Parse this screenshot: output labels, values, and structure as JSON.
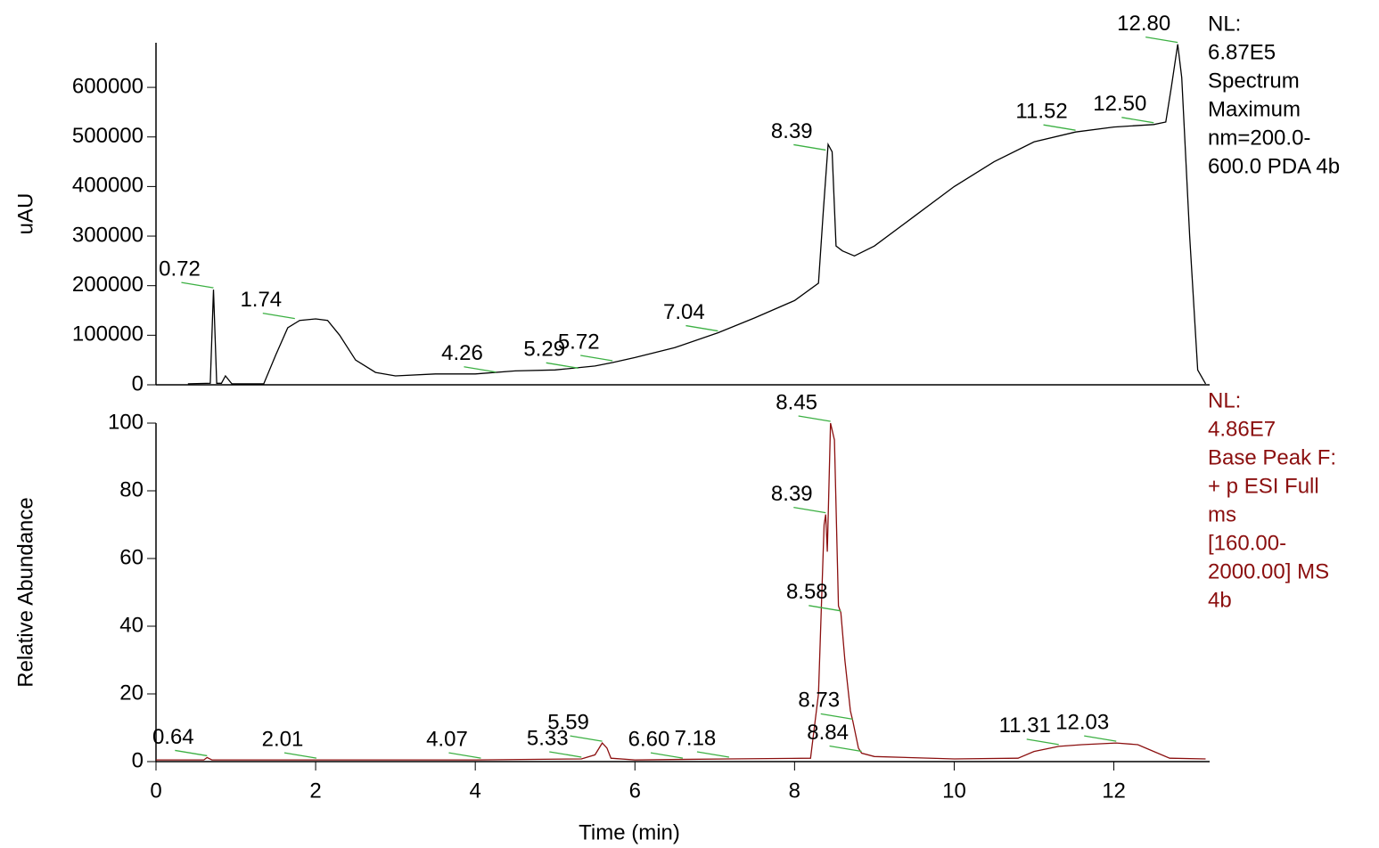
{
  "chart_data": [
    {
      "type": "line",
      "ylabel": "uAU",
      "xlim": [
        0,
        13.2
      ],
      "ylim": [
        0,
        690000
      ],
      "yticks": [
        0,
        100000,
        200000,
        300000,
        400000,
        500000,
        600000
      ],
      "x": [
        0.4,
        0.68,
        0.72,
        0.76,
        0.82,
        0.87,
        0.95,
        1.35,
        1.5,
        1.65,
        1.8,
        2.0,
        2.15,
        2.3,
        2.5,
        2.75,
        3.0,
        3.5,
        4.0,
        4.5,
        5.0,
        5.5,
        5.72,
        6.0,
        6.5,
        7.04,
        7.5,
        8.0,
        8.3,
        8.36,
        8.42,
        8.47,
        8.52,
        8.6,
        8.75,
        9.0,
        9.5,
        10.0,
        10.5,
        11.0,
        11.52,
        12.0,
        12.5,
        12.65,
        12.72,
        12.8,
        12.85,
        12.95,
        13.05,
        13.15
      ],
      "series": [
        {
          "name": "PDA",
          "color": "#000000",
          "values": [
            2000,
            3000,
            192000,
            3000,
            3000,
            18000,
            2000,
            2000,
            60000,
            115000,
            130000,
            133000,
            130000,
            100000,
            50000,
            25000,
            18000,
            22000,
            22000,
            28000,
            30000,
            38000,
            45000,
            55000,
            75000,
            105000,
            135000,
            170000,
            205000,
            350000,
            485000,
            470000,
            280000,
            270000,
            260000,
            280000,
            340000,
            400000,
            450000,
            490000,
            510000,
            520000,
            525000,
            530000,
            600000,
            687000,
            620000,
            300000,
            30000,
            2000
          ]
        }
      ],
      "peaks": [
        {
          "label": "0.72",
          "x": 0.72,
          "y": 192000
        },
        {
          "label": "1.74",
          "x": 1.74,
          "y": 130000
        },
        {
          "label": "4.26",
          "x": 4.26,
          "y": 22000
        },
        {
          "label": "5.29",
          "x": 5.29,
          "y": 30000
        },
        {
          "label": "5.72",
          "x": 5.72,
          "y": 45000
        },
        {
          "label": "7.04",
          "x": 7.04,
          "y": 105000
        },
        {
          "label": "8.39",
          "x": 8.39,
          "y": 470000
        },
        {
          "label": "11.52",
          "x": 11.52,
          "y": 510000
        },
        {
          "label": "12.50",
          "x": 12.5,
          "y": 525000
        },
        {
          "label": "12.80",
          "x": 12.8,
          "y": 687000
        }
      ],
      "info": [
        "NL:",
        "6.87E5",
        "Spectrum",
        "Maximum",
        "nm=200.0-",
        "600.0  PDA 4b"
      ]
    },
    {
      "type": "line",
      "ylabel": "Relative Abundance",
      "xlabel": "Time (min)",
      "xlim": [
        0,
        13.2
      ],
      "ylim": [
        0,
        100
      ],
      "xticks": [
        0,
        2,
        4,
        6,
        8,
        10,
        12
      ],
      "yticks": [
        0,
        20,
        40,
        60,
        80,
        100
      ],
      "x": [
        0,
        0.6,
        0.64,
        0.7,
        2,
        4,
        5.33,
        5.5,
        5.59,
        5.65,
        5.7,
        6,
        7.18,
        8.2,
        8.3,
        8.37,
        8.39,
        8.41,
        8.45,
        8.5,
        8.55,
        8.58,
        8.63,
        8.7,
        8.73,
        8.8,
        8.84,
        9,
        10,
        10.8,
        11.0,
        11.31,
        11.6,
        12.03,
        12.3,
        12.5,
        12.7,
        13.15
      ],
      "series": [
        {
          "name": "Base Peak",
          "color": "#8b0f0f",
          "values": [
            0.5,
            0.5,
            1.2,
            0.5,
            0.5,
            0.5,
            0.8,
            2,
            5.5,
            4,
            1,
            0.5,
            0.8,
            1,
            20,
            70,
            73,
            62,
            100,
            95,
            46,
            44,
            30,
            15,
            12,
            4,
            2.5,
            1.5,
            0.8,
            1,
            3,
            4.5,
            5,
            5.5,
            5,
            3,
            1,
            0.8
          ]
        }
      ],
      "peaks": [
        {
          "label": "0.64",
          "x": 0.64,
          "y": 1.2
        },
        {
          "label": "2.01",
          "x": 2.01,
          "y": 0.5
        },
        {
          "label": "4.07",
          "x": 4.07,
          "y": 0.5
        },
        {
          "label": "5.33",
          "x": 5.33,
          "y": 0.8
        },
        {
          "label": "5.59",
          "x": 5.59,
          "y": 5.5
        },
        {
          "label": "6.60",
          "x": 6.6,
          "y": 0.5
        },
        {
          "label": "7.18",
          "x": 7.18,
          "y": 0.8
        },
        {
          "label": "8.45",
          "x": 8.45,
          "y": 100
        },
        {
          "label": "8.39",
          "x": 8.39,
          "y": 73
        },
        {
          "label": "8.58",
          "x": 8.58,
          "y": 44
        },
        {
          "label": "8.73",
          "x": 8.73,
          "y": 12
        },
        {
          "label": "8.84",
          "x": 8.84,
          "y": 2.5
        },
        {
          "label": "11.31",
          "x": 11.31,
          "y": 4.5
        },
        {
          "label": "12.03",
          "x": 12.03,
          "y": 5.5
        }
      ],
      "info": [
        "NL:",
        "4.86E7",
        "Base Peak F:",
        "+ p ESI Full",
        "ms",
        "[160.00-",
        "2000.00]  MS",
        "4b"
      ]
    }
  ]
}
